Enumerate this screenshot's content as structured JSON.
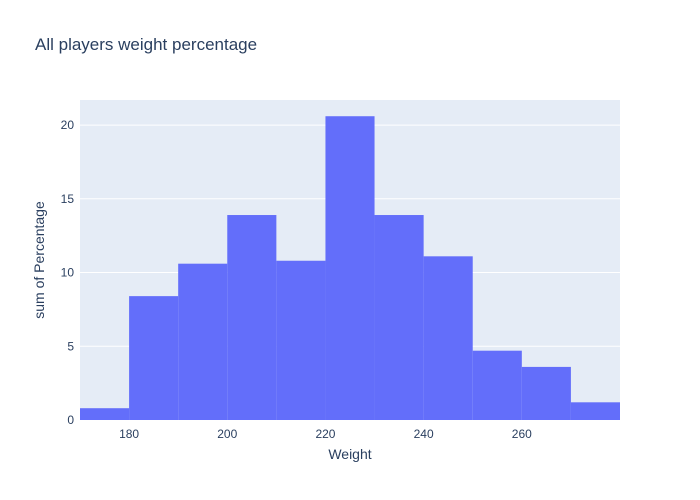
{
  "chart_data": {
    "type": "bar",
    "title": "All players weight percentage",
    "xlabel": "Weight",
    "ylabel": "sum of Percentage",
    "xlim": [
      170,
      280
    ],
    "ylim": [
      0,
      21.7
    ],
    "bin_width": 10,
    "bins": [
      {
        "start": 170,
        "end": 180,
        "value": 0.8
      },
      {
        "start": 180,
        "end": 190,
        "value": 8.4
      },
      {
        "start": 190,
        "end": 200,
        "value": 10.6
      },
      {
        "start": 200,
        "end": 210,
        "value": 13.9
      },
      {
        "start": 210,
        "end": 220,
        "value": 10.8
      },
      {
        "start": 220,
        "end": 230,
        "value": 20.6
      },
      {
        "start": 230,
        "end": 240,
        "value": 13.9
      },
      {
        "start": 240,
        "end": 250,
        "value": 11.1
      },
      {
        "start": 250,
        "end": 260,
        "value": 4.7
      },
      {
        "start": 260,
        "end": 270,
        "value": 3.6
      },
      {
        "start": 270,
        "end": 280,
        "value": 1.2
      }
    ],
    "x_ticks": [
      180,
      200,
      220,
      240,
      260
    ],
    "y_ticks": [
      0,
      5,
      10,
      15,
      20
    ],
    "grid": true,
    "colors": {
      "bar": "#636efa",
      "plot_bg": "#e5ecf6",
      "grid": "#ffffff",
      "text": "#2a3f5f"
    }
  }
}
